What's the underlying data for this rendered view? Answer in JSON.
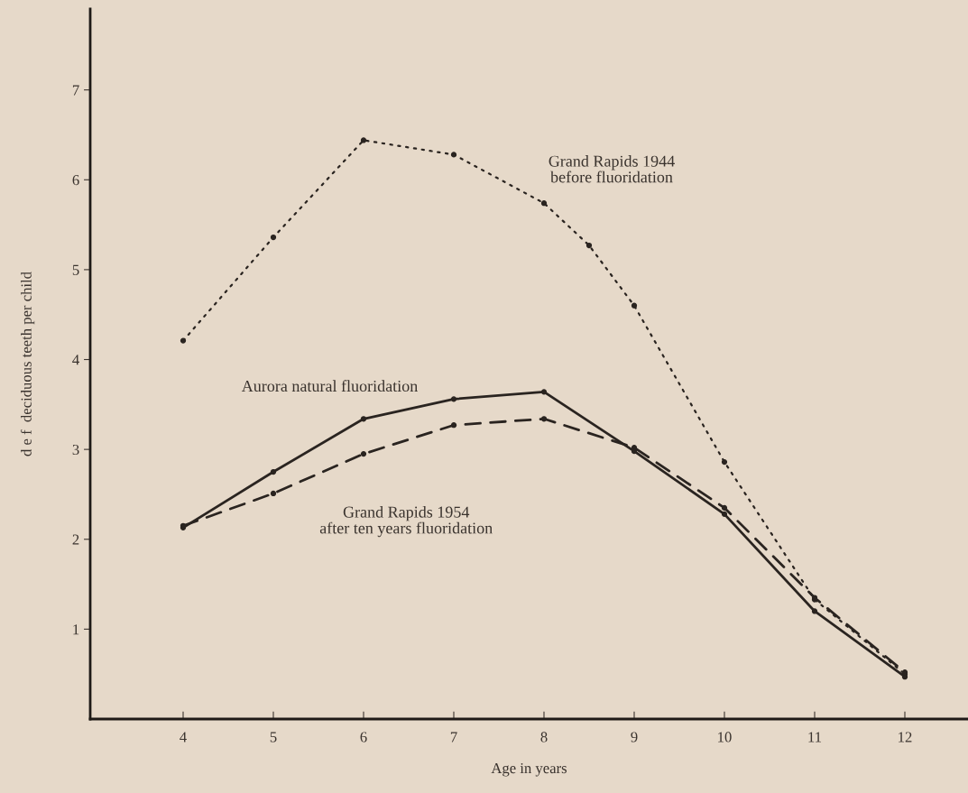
{
  "chart_data": {
    "type": "line",
    "xlabel": "Age in years",
    "ylabel": "d e f  deciduous teeth per child",
    "xlim": [
      2.97,
      12.7
    ],
    "ylim": [
      0,
      7.9
    ],
    "xticks": [
      4,
      5,
      6,
      7,
      8,
      9,
      10,
      11,
      12
    ],
    "yticks": [
      1,
      2,
      3,
      4,
      5,
      6,
      7
    ],
    "grid": false,
    "legend": false,
    "marker": "circle",
    "series": [
      {
        "name": "Grand Rapids 1944\nbefore fluoridation",
        "color": "#2a2420",
        "line_style": "dotted",
        "x": [
          4,
          5,
          6,
          7,
          8,
          8.5,
          9,
          10,
          11,
          12
        ],
        "values": [
          4.21,
          5.36,
          6.44,
          6.28,
          5.74,
          5.27,
          4.6,
          2.86,
          1.33,
          0.5
        ]
      },
      {
        "name": "Aurora natural fluoridation",
        "color": "#2a2420",
        "line_style": "solid",
        "x": [
          4,
          5,
          6,
          7,
          8,
          9,
          10,
          11,
          12
        ],
        "values": [
          2.13,
          2.75,
          3.34,
          3.56,
          3.64,
          2.98,
          2.28,
          1.2,
          0.47
        ]
      },
      {
        "name": "Grand Rapids 1954\nafter ten years fluoridation",
        "color": "#2a2420",
        "line_style": "dashed",
        "x": [
          4,
          5,
          6,
          7,
          8,
          9,
          10,
          11,
          12
        ],
        "values": [
          2.15,
          2.51,
          2.95,
          3.27,
          3.34,
          3.02,
          2.35,
          1.35,
          0.52
        ]
      }
    ]
  }
}
